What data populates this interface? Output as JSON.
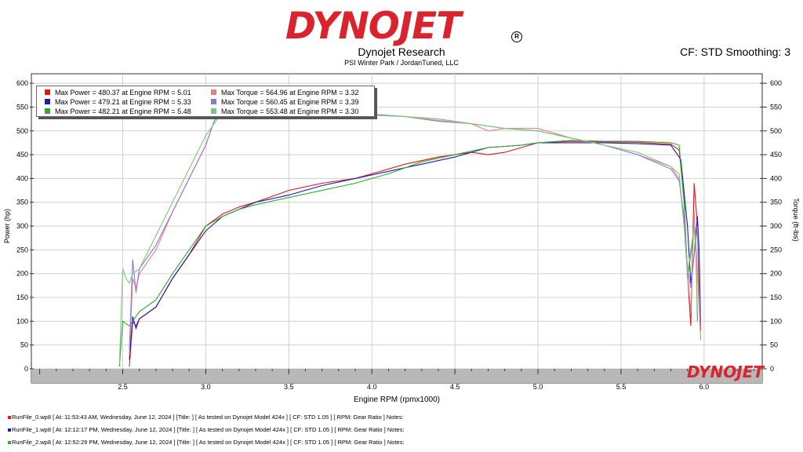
{
  "header": {
    "logo_text": "DYNOJET",
    "title": "Dynojet Research",
    "subtitle": "PSI Winter Park / JordanTuned, LLC",
    "correction": "CF: STD Smoothing: 3"
  },
  "colors": {
    "logo_red": "#d9232d",
    "run0_power": "#e8141c",
    "run1_power": "#1a1ab8",
    "run2_power": "#2cae2c",
    "run0_torque": "#e88080",
    "run1_torque": "#8a7ad8",
    "run2_torque": "#7ac87a"
  },
  "chart_data": {
    "type": "line",
    "xlabel": "Engine RPM (rpmx1000)",
    "ylabel_left": "Power (hp)",
    "ylabel_right": "Torque (ft-lbs)",
    "xlim": [
      1.95,
      6.35
    ],
    "ylim": [
      0,
      620
    ],
    "x_ticks": [
      2.5,
      3.0,
      3.5,
      4.0,
      4.5,
      5.0,
      5.5,
      6.0
    ],
    "y_ticks": [
      0,
      50,
      100,
      150,
      200,
      250,
      300,
      350,
      400,
      450,
      500,
      550,
      600
    ],
    "grid": true,
    "legend": [
      {
        "text": "Max Power = 480.37 at Engine RPM = 5.01",
        "color": "#e8141c"
      },
      {
        "text": "Max Power = 479.21 at Engine RPM = 5.33",
        "color": "#1a1ab8"
      },
      {
        "text": "Max Power = 482.21 at Engine RPM = 5.48",
        "color": "#2cae2c"
      },
      {
        "text": "Max Torque = 564.96 at Engine RPM = 3.32",
        "color": "#e88080"
      },
      {
        "text": "Max Torque = 560.45 at Engine RPM = 3.39",
        "color": "#8a7ad8"
      },
      {
        "text": "Max Torque = 553.48 at Engine RPM = 3.30",
        "color": "#7ac87a"
      }
    ],
    "legend_position": "top-left",
    "series": [
      {
        "kind": "power",
        "color": "#e8141c",
        "x": [
          2.54,
          2.56,
          2.58,
          2.6,
          2.7,
          2.8,
          2.9,
          3.0,
          3.1,
          3.2,
          3.3,
          3.5,
          3.7,
          3.9,
          4.0,
          4.2,
          4.4,
          4.6,
          4.7,
          4.8,
          4.9,
          5.0,
          5.2,
          5.4,
          5.6,
          5.8,
          5.85,
          5.88,
          5.9,
          5.92,
          5.94,
          5.96,
          5.97,
          5.98
        ],
        "y": [
          5,
          100,
          90,
          105,
          130,
          190,
          240,
          300,
          325,
          340,
          350,
          375,
          390,
          400,
          410,
          430,
          445,
          455,
          450,
          455,
          465,
          475,
          478,
          477,
          476,
          472,
          460,
          350,
          200,
          90,
          390,
          300,
          150,
          80
        ]
      },
      {
        "kind": "power",
        "color": "#1a1ab8",
        "x": [
          2.54,
          2.56,
          2.58,
          2.6,
          2.7,
          2.8,
          2.9,
          3.0,
          3.05,
          3.1,
          3.2,
          3.3,
          3.5,
          3.7,
          3.9,
          4.1,
          4.3,
          4.5,
          4.7,
          4.9,
          5.0,
          5.2,
          5.4,
          5.6,
          5.8,
          5.86,
          5.9,
          5.92,
          5.94,
          5.96,
          5.97,
          5.98
        ],
        "y": [
          20,
          110,
          85,
          105,
          130,
          190,
          240,
          290,
          305,
          320,
          335,
          350,
          365,
          385,
          400,
          415,
          430,
          445,
          465,
          470,
          475,
          475,
          475,
          473,
          470,
          440,
          300,
          180,
          240,
          320,
          250,
          90
        ]
      },
      {
        "kind": "power",
        "color": "#2cae2c",
        "x": [
          2.48,
          2.5,
          2.52,
          2.54,
          2.56,
          2.6,
          2.7,
          2.8,
          2.9,
          3.0,
          3.1,
          3.2,
          3.3,
          3.5,
          3.7,
          3.9,
          4.1,
          4.3,
          4.5,
          4.7,
          4.9,
          5.0,
          5.2,
          5.4,
          5.6,
          5.8,
          5.85,
          5.88,
          5.9,
          5.92,
          5.94,
          5.95,
          5.96
        ],
        "y": [
          5,
          100,
          95,
          90,
          100,
          120,
          145,
          200,
          250,
          300,
          320,
          335,
          345,
          360,
          375,
          390,
          410,
          435,
          450,
          465,
          470,
          475,
          480,
          478,
          478,
          475,
          470,
          350,
          190,
          240,
          300,
          250,
          100
        ]
      },
      {
        "kind": "torque",
        "color": "#e88080",
        "x": [
          2.54,
          2.56,
          2.58,
          2.6,
          2.7,
          2.8,
          2.9,
          3.0,
          3.05,
          3.1,
          3.3,
          3.5,
          3.8,
          4.0,
          4.2,
          4.4,
          4.6,
          4.7,
          4.8,
          5.0,
          5.2,
          5.4,
          5.6,
          5.8,
          5.85,
          5.88,
          5.9,
          5.92,
          5.94,
          5.96,
          5.98
        ],
        "y": [
          30,
          190,
          170,
          200,
          250,
          330,
          400,
          470,
          520,
          545,
          565,
          555,
          540,
          535,
          530,
          525,
          515,
          500,
          505,
          505,
          485,
          470,
          450,
          425,
          400,
          300,
          200,
          120,
          330,
          200,
          60
        ]
      },
      {
        "kind": "torque",
        "color": "#8a7ad8",
        "x": [
          2.54,
          2.56,
          2.58,
          2.6,
          2.7,
          2.8,
          2.9,
          3.0,
          3.05,
          3.1,
          3.3,
          3.5,
          3.8,
          4.0,
          4.2,
          4.4,
          4.6,
          4.8,
          5.0,
          5.2,
          5.4,
          5.6,
          5.8,
          5.85,
          5.88,
          5.9,
          5.92,
          5.94,
          5.96,
          5.98
        ],
        "y": [
          40,
          230,
          160,
          210,
          260,
          330,
          400,
          470,
          520,
          545,
          560,
          550,
          540,
          535,
          530,
          520,
          515,
          505,
          500,
          485,
          470,
          450,
          420,
          395,
          320,
          210,
          170,
          240,
          300,
          80
        ]
      },
      {
        "kind": "torque",
        "color": "#7ac87a",
        "x": [
          2.48,
          2.5,
          2.52,
          2.54,
          2.56,
          2.6,
          2.7,
          2.8,
          2.9,
          3.0,
          3.1,
          3.3,
          3.5,
          3.8,
          4.0,
          4.2,
          4.4,
          4.6,
          4.8,
          5.0,
          5.2,
          5.4,
          5.6,
          5.8,
          5.85,
          5.88,
          5.9,
          5.92,
          5.94,
          5.95,
          5.96
        ],
        "y": [
          10,
          210,
          190,
          180,
          200,
          210,
          280,
          350,
          420,
          490,
          540,
          553,
          545,
          538,
          533,
          530,
          522,
          515,
          505,
          500,
          485,
          470,
          455,
          425,
          410,
          300,
          200,
          250,
          300,
          260,
          120
        ]
      }
    ]
  },
  "footer": {
    "runs": [
      {
        "color": "#e8141c",
        "text": "RunFile_0.wp8  [  At:  11:53:43 AM, Wednesday, June 12, 2024  ]  [Title:  ]   [  As tested on Dynojet Model 424x  ]  [  CF:  STD 1.05  ]  [  RPM:  Gear Ratio  ]  Notes:"
      },
      {
        "color": "#1a1ab8",
        "text": "RunFile_1.wp8  [  At:  12:12:17 PM, Wednesday, June 12, 2024  ]  [Title:  ]   [  As tested on Dynojet Model 424x  ]  [  CF:  STD 1.05  ]  [  RPM:  Gear Ratio  ]  Notes:"
      },
      {
        "color": "#2cae2c",
        "text": "RunFile_2.wp8  [  At:  12:52:29 PM, Wednesday, June 12, 2024  ]  [Title:  ]   [  As tested on Dynojet Model 424x  ]  [  CF:  STD 1.05  ]  [  RPM:  Gear Ratio  ]  Notes:"
      }
    ]
  }
}
